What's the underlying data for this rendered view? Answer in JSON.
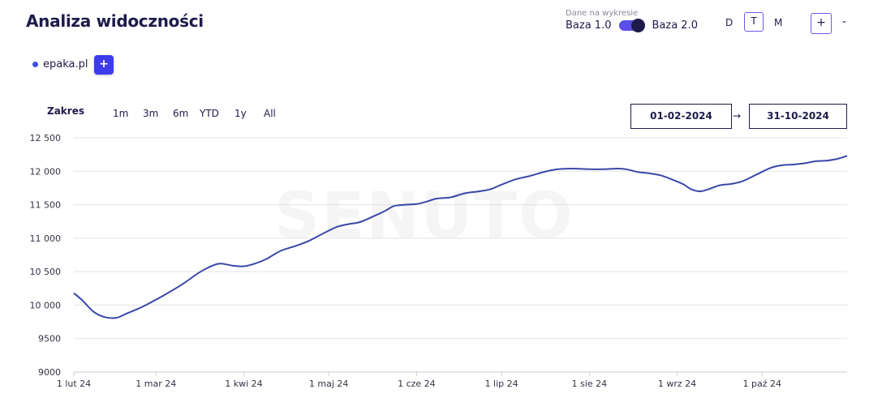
{
  "header": {
    "title": "Analiza widoczności",
    "toggle_caption": "Dane na wykresie",
    "toggle_left": "Baza 1.0",
    "toggle_right": "Baza 2.0",
    "period_day": "D",
    "period_week": "T",
    "period_month": "M",
    "zoom_in": "+",
    "zoom_out": "-"
  },
  "domains": {
    "items": [
      {
        "name": "epaka.pl",
        "color": "#3d4fe6"
      }
    ],
    "add_label": "+"
  },
  "range": {
    "label": "Zakres",
    "buttons": [
      "1m",
      "3m",
      "6m",
      "YTD",
      "1y",
      "All"
    ],
    "from": "01-02-2024",
    "arrow": "→",
    "to": "31-10-2024"
  },
  "watermark": "SENUTO",
  "chart_data": {
    "type": "line",
    "title": "",
    "xlabel": "",
    "ylabel": "",
    "ylim": [
      9000,
      12500
    ],
    "yticks": [
      9000,
      9500,
      10000,
      10500,
      11000,
      11500,
      12000,
      12500
    ],
    "ytick_labels": [
      "9000",
      "9500",
      "10 000",
      "10 500",
      "11 000",
      "11 500",
      "12 000",
      "12 500"
    ],
    "xlim": [
      "2024-02-01",
      "2024-10-31"
    ],
    "xticks": [
      {
        "date": "2024-02-01",
        "label": "1 lut 24"
      },
      {
        "date": "2024-03-01",
        "label": "1 mar 24"
      },
      {
        "date": "2024-04-01",
        "label": "1 kwi 24"
      },
      {
        "date": "2024-05-01",
        "label": "1 maj 24"
      },
      {
        "date": "2024-06-01",
        "label": "1 cze 24"
      },
      {
        "date": "2024-07-01",
        "label": "1 lip 24"
      },
      {
        "date": "2024-08-01",
        "label": "1 sie 24"
      },
      {
        "date": "2024-09-01",
        "label": "1 wrz 24"
      },
      {
        "date": "2024-10-01",
        "label": "1 paź 24"
      }
    ],
    "grid": true,
    "series": [
      {
        "name": "epaka.pl",
        "color": "#3a47a8",
        "points": [
          [
            "2024-02-01",
            10180
          ],
          [
            "2024-02-04",
            10070
          ],
          [
            "2024-02-08",
            9900
          ],
          [
            "2024-02-12",
            9820
          ],
          [
            "2024-02-16",
            9810
          ],
          [
            "2024-02-20",
            9880
          ],
          [
            "2024-02-25",
            9970
          ],
          [
            "2024-03-01",
            10080
          ],
          [
            "2024-03-06",
            10200
          ],
          [
            "2024-03-11",
            10330
          ],
          [
            "2024-03-16",
            10480
          ],
          [
            "2024-03-21",
            10590
          ],
          [
            "2024-03-24",
            10620
          ],
          [
            "2024-03-28",
            10590
          ],
          [
            "2024-04-01",
            10580
          ],
          [
            "2024-04-05",
            10620
          ],
          [
            "2024-04-09",
            10690
          ],
          [
            "2024-04-14",
            10810
          ],
          [
            "2024-04-19",
            10880
          ],
          [
            "2024-04-24",
            10960
          ],
          [
            "2024-04-29",
            11070
          ],
          [
            "2024-05-04",
            11170
          ],
          [
            "2024-05-08",
            11210
          ],
          [
            "2024-05-12",
            11240
          ],
          [
            "2024-05-17",
            11330
          ],
          [
            "2024-05-21",
            11410
          ],
          [
            "2024-05-24",
            11480
          ],
          [
            "2024-05-28",
            11500
          ],
          [
            "2024-06-01",
            11510
          ],
          [
            "2024-06-04",
            11540
          ],
          [
            "2024-06-08",
            11590
          ],
          [
            "2024-06-13",
            11610
          ],
          [
            "2024-06-18",
            11670
          ],
          [
            "2024-06-23",
            11700
          ],
          [
            "2024-06-27",
            11730
          ],
          [
            "2024-07-01",
            11800
          ],
          [
            "2024-07-06",
            11880
          ],
          [
            "2024-07-11",
            11930
          ],
          [
            "2024-07-16",
            11990
          ],
          [
            "2024-07-21",
            12030
          ],
          [
            "2024-07-26",
            12040
          ],
          [
            "2024-08-01",
            12030
          ],
          [
            "2024-08-06",
            12030
          ],
          [
            "2024-08-11",
            12040
          ],
          [
            "2024-08-14",
            12030
          ],
          [
            "2024-08-18",
            11990
          ],
          [
            "2024-08-22",
            11970
          ],
          [
            "2024-08-26",
            11940
          ],
          [
            "2024-08-30",
            11880
          ],
          [
            "2024-09-03",
            11810
          ],
          [
            "2024-09-06",
            11730
          ],
          [
            "2024-09-09",
            11700
          ],
          [
            "2024-09-12",
            11730
          ],
          [
            "2024-09-16",
            11790
          ],
          [
            "2024-09-20",
            11810
          ],
          [
            "2024-09-24",
            11850
          ],
          [
            "2024-09-29",
            11950
          ],
          [
            "2024-10-04",
            12050
          ],
          [
            "2024-10-08",
            12090
          ],
          [
            "2024-10-12",
            12100
          ],
          [
            "2024-10-16",
            12120
          ],
          [
            "2024-10-20",
            12150
          ],
          [
            "2024-10-24",
            12160
          ],
          [
            "2024-10-28",
            12190
          ],
          [
            "2024-10-31",
            12230
          ]
        ]
      }
    ]
  }
}
